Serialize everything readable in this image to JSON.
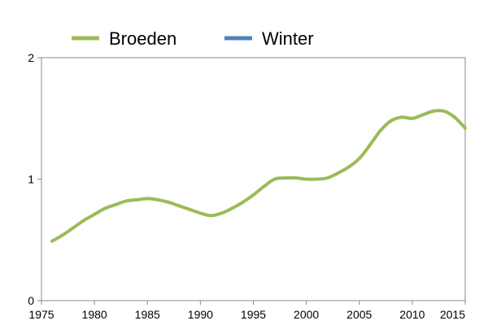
{
  "chart_data": {
    "type": "line",
    "title": "",
    "xlabel": "",
    "ylabel": "",
    "xlim": [
      1975,
      2015
    ],
    "ylim": [
      0,
      2
    ],
    "x_ticks": [
      "1975",
      "1980",
      "1985",
      "1990",
      "1995",
      "2000",
      "2005",
      "2010",
      "2015"
    ],
    "y_ticks": [
      "0",
      "1",
      "2"
    ],
    "grid": false,
    "legend_position": "top",
    "series": [
      {
        "name": "Broeden",
        "color": "#9bbb59",
        "x": [
          1976,
          1977,
          1978,
          1979,
          1980,
          1981,
          1982,
          1983,
          1984,
          1985,
          1986,
          1987,
          1988,
          1989,
          1990,
          1991,
          1992,
          1993,
          1994,
          1995,
          1996,
          1997,
          1998,
          1999,
          2000,
          2001,
          2002,
          2003,
          2004,
          2005,
          2006,
          2007,
          2008,
          2009,
          2010,
          2011,
          2012,
          2013,
          2014,
          2015
        ],
        "values": [
          0.49,
          0.54,
          0.6,
          0.66,
          0.71,
          0.76,
          0.79,
          0.82,
          0.83,
          0.84,
          0.83,
          0.81,
          0.78,
          0.75,
          0.72,
          0.7,
          0.72,
          0.76,
          0.81,
          0.87,
          0.94,
          1.0,
          1.01,
          1.01,
          1.0,
          1.0,
          1.01,
          1.05,
          1.1,
          1.17,
          1.28,
          1.4,
          1.48,
          1.51,
          1.5,
          1.53,
          1.56,
          1.56,
          1.51,
          1.42
        ]
      },
      {
        "name": "Winter",
        "color": "#4f81bd",
        "x": [],
        "values": []
      }
    ]
  }
}
